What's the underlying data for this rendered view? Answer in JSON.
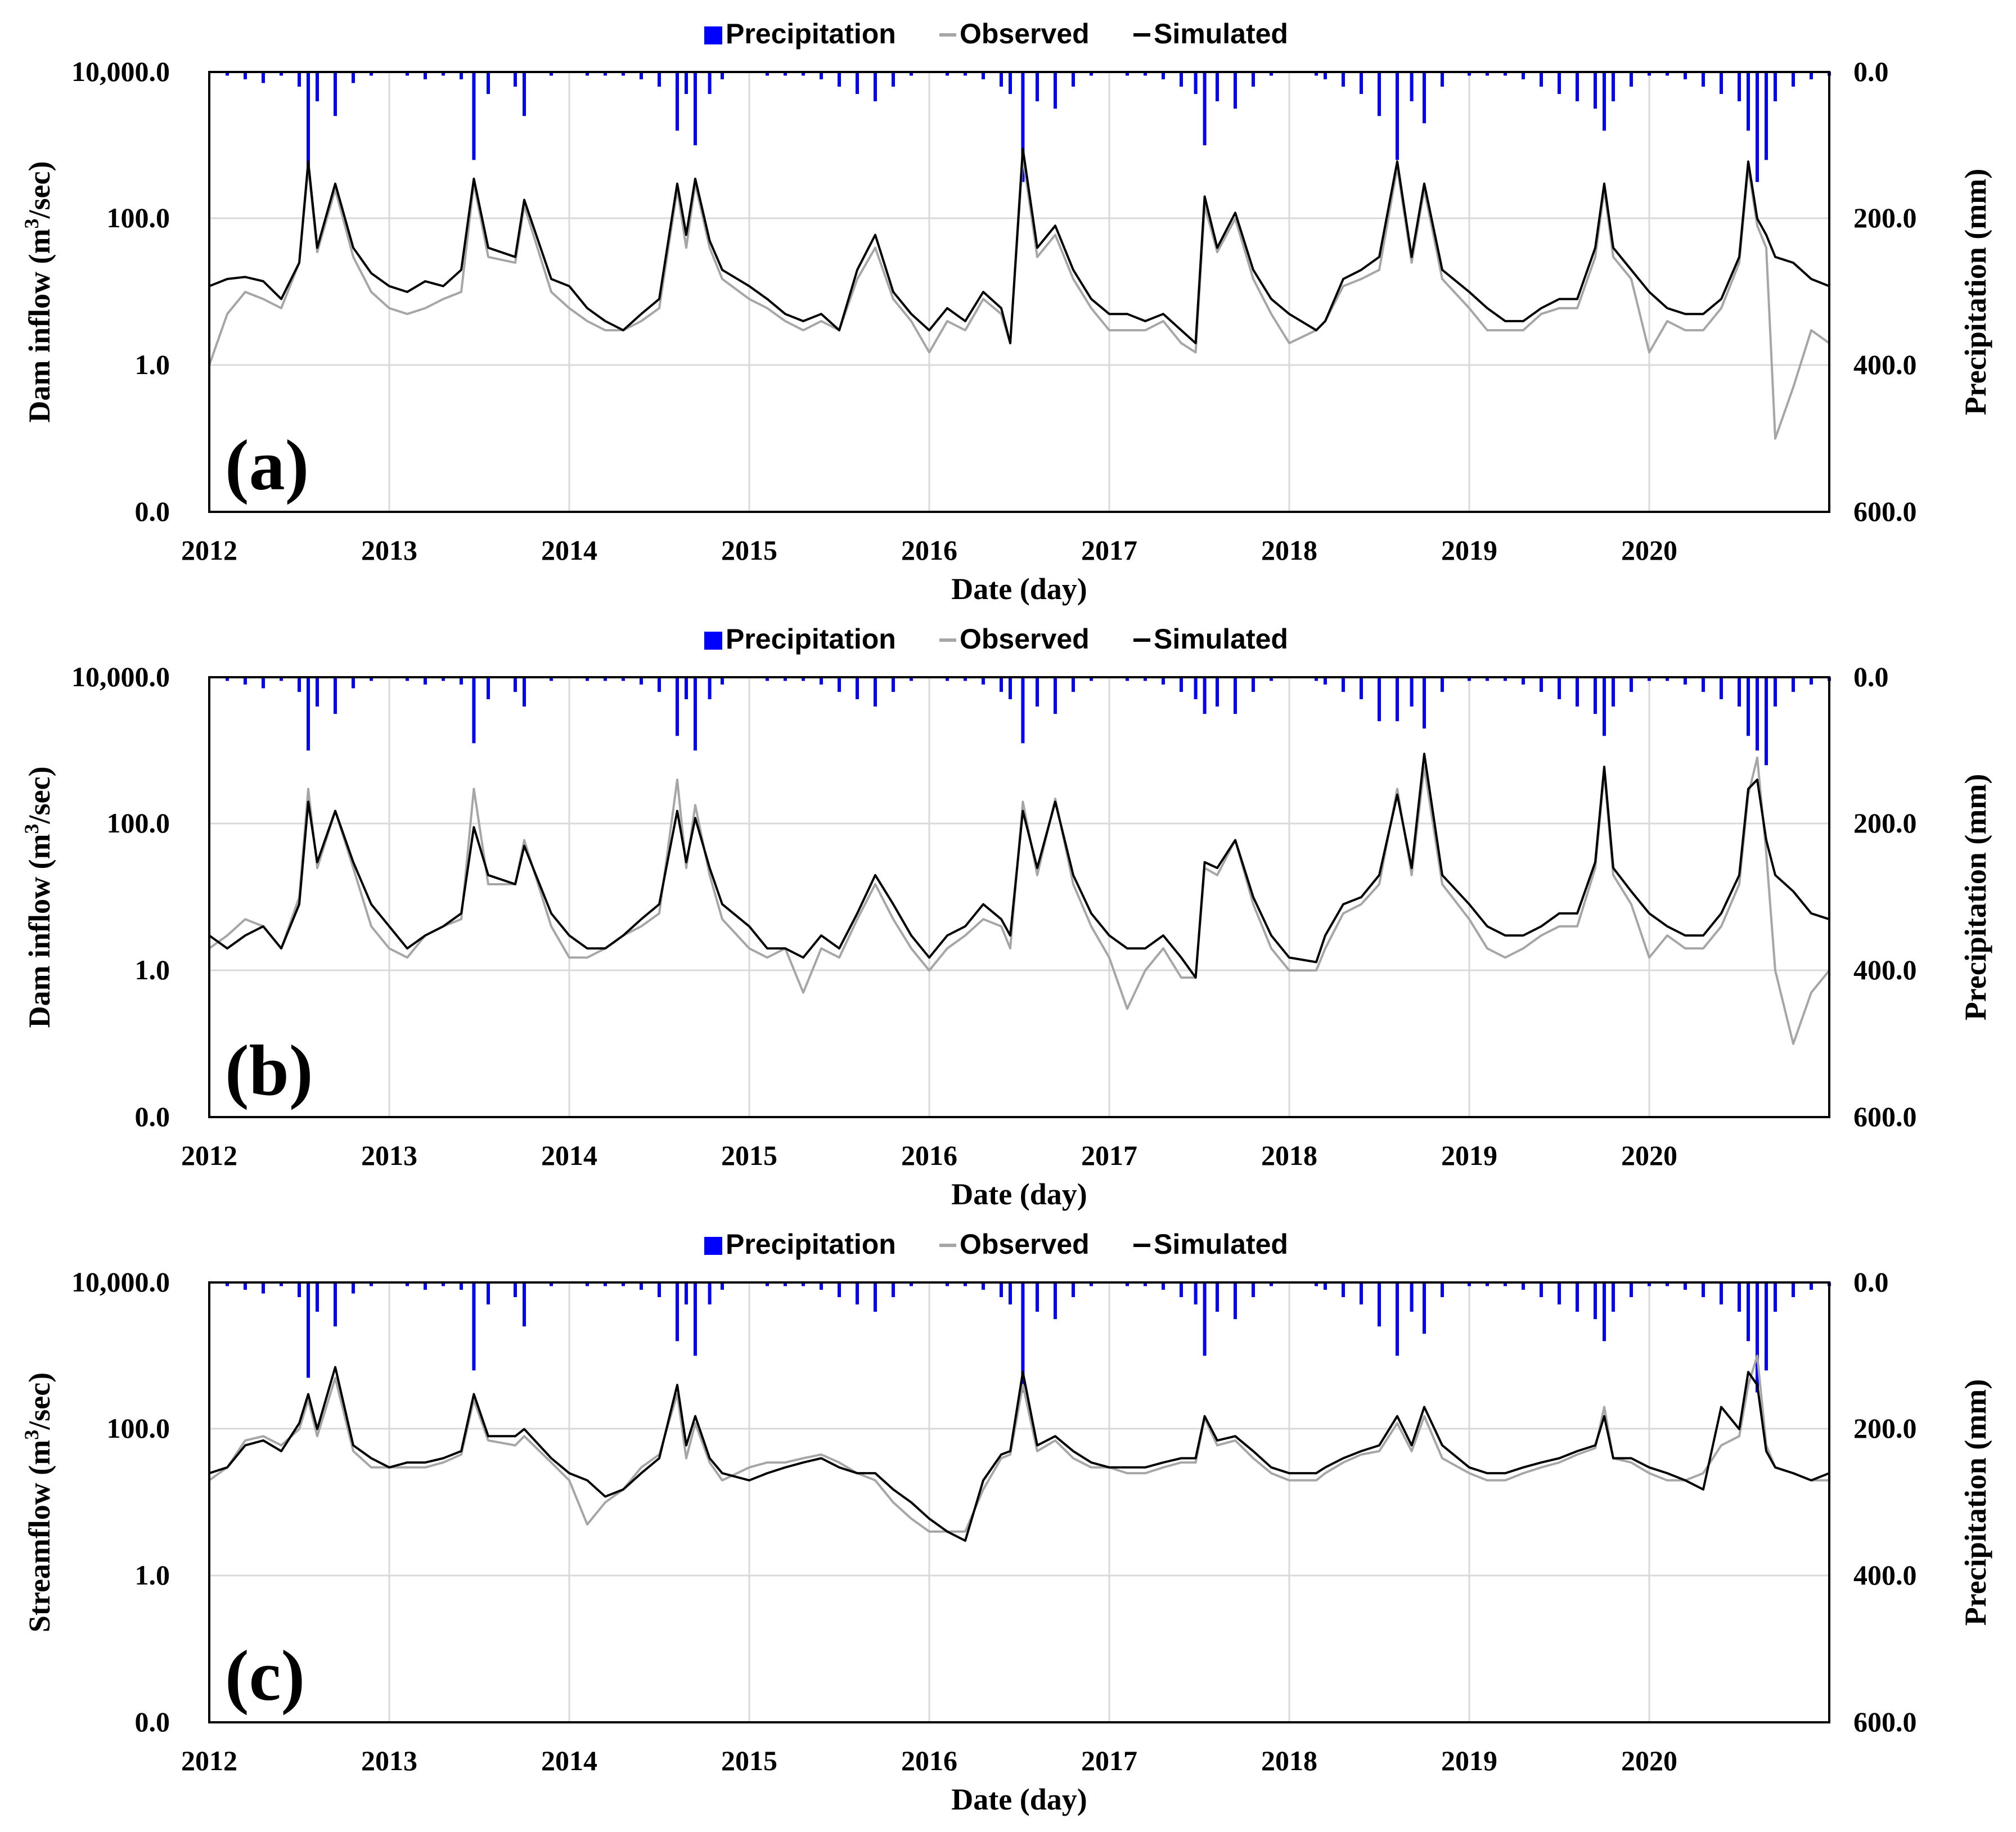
{
  "figure": {
    "legend": {
      "precipitation": "Precipitation",
      "observed": "Observed",
      "simulated": "Simulated"
    },
    "colors": {
      "precipitation": "#0000ff",
      "observed": "#a6a6a6",
      "simulated": "#000000",
      "grid": "#d9d9d9"
    },
    "x_axis_title": "Date (day)",
    "x_tick_labels": [
      "2012",
      "2013",
      "2014",
      "2015",
      "2016",
      "2017",
      "2018",
      "2019",
      "2020"
    ],
    "y_right_title": "Precipitation (mm)",
    "y_right_tick_labels": [
      "0.0",
      "200.0",
      "400.0",
      "600.0"
    ]
  },
  "chart_data": [
    {
      "type": "line",
      "panel_label": "(a)",
      "ylabel_prefix": "Dam inflow (m",
      "ylabel_sup": "3",
      "ylabel_suffix": "/sec)",
      "y_tick_labels": [
        "0.0",
        "1.0",
        "100.0",
        "10,000.0"
      ],
      "xlim": [
        2012.0,
        2021.0
      ],
      "ylim_log": [
        0.01,
        10000
      ],
      "y2lim": [
        0,
        600
      ],
      "x": [
        2012.0,
        2012.1,
        2012.2,
        2012.3,
        2012.4,
        2012.5,
        2012.55,
        2012.6,
        2012.7,
        2012.8,
        2012.9,
        2013.0,
        2013.1,
        2013.2,
        2013.3,
        2013.4,
        2013.47,
        2013.55,
        2013.7,
        2013.75,
        2013.9,
        2014.0,
        2014.1,
        2014.2,
        2014.3,
        2014.4,
        2014.5,
        2014.6,
        2014.65,
        2014.7,
        2014.78,
        2014.85,
        2015.0,
        2015.1,
        2015.2,
        2015.3,
        2015.4,
        2015.5,
        2015.6,
        2015.7,
        2015.8,
        2015.9,
        2016.0,
        2016.1,
        2016.2,
        2016.3,
        2016.4,
        2016.45,
        2016.52,
        2016.6,
        2016.7,
        2016.8,
        2016.9,
        2017.0,
        2017.1,
        2017.2,
        2017.3,
        2017.4,
        2017.48,
        2017.53,
        2017.6,
        2017.7,
        2017.8,
        2017.9,
        2018.0,
        2018.15,
        2018.2,
        2018.3,
        2018.4,
        2018.5,
        2018.6,
        2018.68,
        2018.75,
        2018.85,
        2019.0,
        2019.1,
        2019.2,
        2019.3,
        2019.4,
        2019.5,
        2019.6,
        2019.7,
        2019.75,
        2019.8,
        2019.9,
        2020.0,
        2020.1,
        2020.2,
        2020.3,
        2020.4,
        2020.5,
        2020.55,
        2020.6,
        2020.65,
        2020.7,
        2020.8,
        2020.9,
        2021.0
      ],
      "simulated": [
        12,
        15,
        16,
        14,
        8,
        25,
        600,
        40,
        300,
        40,
        18,
        12,
        10,
        14,
        12,
        20,
        350,
        40,
        30,
        180,
        15,
        12,
        6,
        4,
        3,
        5,
        8,
        300,
        60,
        350,
        50,
        20,
        12,
        8,
        5,
        4,
        5,
        3,
        20,
        60,
        10,
        5,
        3,
        6,
        4,
        10,
        6,
        2,
        900,
        40,
        80,
        20,
        8,
        5,
        5,
        4,
        5,
        3,
        2,
        200,
        40,
        120,
        20,
        8,
        5,
        3,
        4,
        15,
        20,
        30,
        600,
        30,
        300,
        20,
        10,
        6,
        4,
        4,
        6,
        8,
        8,
        40,
        300,
        40,
        20,
        10,
        6,
        5,
        5,
        8,
        30,
        600,
        100,
        60,
        30,
        25,
        15,
        12
      ],
      "observed": [
        1,
        5,
        10,
        8,
        6,
        25,
        500,
        35,
        250,
        30,
        10,
        6,
        5,
        6,
        8,
        10,
        300,
        30,
        25,
        150,
        10,
        6,
        4,
        3,
        3,
        4,
        6,
        250,
        40,
        300,
        40,
        15,
        8,
        6,
        4,
        3,
        4,
        3,
        15,
        40,
        8,
        4,
        1.5,
        4,
        3,
        8,
        5,
        2,
        700,
        30,
        60,
        15,
        6,
        3,
        3,
        3,
        4,
        2,
        1.5,
        150,
        35,
        100,
        15,
        5,
        2,
        3,
        4,
        12,
        15,
        20,
        500,
        25,
        250,
        15,
        6,
        3,
        3,
        3,
        5,
        6,
        6,
        30,
        250,
        30,
        15,
        1.5,
        4,
        3,
        3,
        6,
        25,
        500,
        80,
        40,
        0.1,
        0.5,
        3,
        2
      ],
      "precipitation": [
        0,
        5,
        10,
        15,
        5,
        20,
        130,
        40,
        60,
        15,
        5,
        0,
        5,
        10,
        5,
        10,
        120,
        30,
        20,
        60,
        5,
        0,
        5,
        5,
        5,
        10,
        20,
        80,
        30,
        100,
        30,
        10,
        0,
        5,
        5,
        5,
        10,
        20,
        30,
        40,
        20,
        5,
        0,
        5,
        5,
        10,
        20,
        30,
        150,
        40,
        50,
        20,
        5,
        0,
        5,
        5,
        10,
        20,
        30,
        100,
        40,
        50,
        20,
        5,
        0,
        5,
        10,
        20,
        30,
        60,
        120,
        40,
        70,
        20,
        5,
        5,
        5,
        10,
        20,
        30,
        40,
        50,
        80,
        40,
        20,
        5,
        5,
        10,
        20,
        30,
        40,
        80,
        150,
        120,
        40,
        20,
        10,
        5
      ]
    },
    {
      "type": "line",
      "panel_label": "(b)",
      "ylabel_prefix": "Dam inflow (m",
      "ylabel_sup": "3",
      "ylabel_suffix": "/sec)",
      "y_tick_labels": [
        "0.0",
        "1.0",
        "100.0",
        "10,000.0"
      ],
      "xlim": [
        2012.0,
        2021.0
      ],
      "ylim_log": [
        0.01,
        10000
      ],
      "y2lim": [
        0,
        600
      ],
      "x": [
        2012.0,
        2012.1,
        2012.2,
        2012.3,
        2012.4,
        2012.5,
        2012.55,
        2012.6,
        2012.7,
        2012.8,
        2012.9,
        2013.0,
        2013.1,
        2013.2,
        2013.3,
        2013.4,
        2013.47,
        2013.55,
        2013.7,
        2013.75,
        2013.9,
        2014.0,
        2014.1,
        2014.2,
        2014.3,
        2014.4,
        2014.5,
        2014.6,
        2014.65,
        2014.7,
        2014.78,
        2014.85,
        2015.0,
        2015.1,
        2015.2,
        2015.3,
        2015.4,
        2015.5,
        2015.6,
        2015.7,
        2015.8,
        2015.9,
        2016.0,
        2016.1,
        2016.2,
        2016.3,
        2016.4,
        2016.45,
        2016.52,
        2016.6,
        2016.7,
        2016.8,
        2016.9,
        2017.0,
        2017.1,
        2017.2,
        2017.3,
        2017.4,
        2017.48,
        2017.53,
        2017.6,
        2017.7,
        2017.8,
        2017.9,
        2018.0,
        2018.15,
        2018.2,
        2018.3,
        2018.4,
        2018.5,
        2018.6,
        2018.68,
        2018.75,
        2018.85,
        2019.0,
        2019.1,
        2019.2,
        2019.3,
        2019.4,
        2019.5,
        2019.6,
        2019.7,
        2019.75,
        2019.8,
        2019.9,
        2020.0,
        2020.1,
        2020.2,
        2020.3,
        2020.4,
        2020.5,
        2020.55,
        2020.6,
        2020.65,
        2020.7,
        2020.8,
        2020.9,
        2021.0
      ],
      "simulated": [
        3,
        2,
        3,
        4,
        2,
        8,
        200,
        30,
        150,
        30,
        8,
        4,
        2,
        3,
        4,
        6,
        90,
        20,
        15,
        50,
        6,
        3,
        2,
        2,
        3,
        5,
        8,
        150,
        30,
        120,
        25,
        8,
        4,
        2,
        2,
        1.5,
        3,
        2,
        6,
        20,
        8,
        3,
        1.5,
        3,
        4,
        8,
        5,
        3,
        150,
        25,
        200,
        20,
        6,
        3,
        2,
        2,
        3,
        1.5,
        0.8,
        30,
        25,
        60,
        10,
        3,
        1.5,
        1.3,
        3,
        8,
        10,
        20,
        250,
        25,
        900,
        20,
        8,
        4,
        3,
        3,
        4,
        6,
        6,
        30,
        600,
        25,
        12,
        6,
        4,
        3,
        3,
        6,
        20,
        300,
        400,
        60,
        20,
        12,
        6,
        5
      ],
      "observed": [
        2,
        3,
        5,
        4,
        2,
        10,
        300,
        25,
        150,
        25,
        4,
        2,
        1.5,
        3,
        4,
        5,
        300,
        15,
        15,
        60,
        4,
        1.5,
        1.5,
        2,
        3,
        4,
        6,
        400,
        25,
        180,
        20,
        5,
        2,
        1.5,
        2,
        0.5,
        2,
        1.5,
        5,
        15,
        5,
        2,
        1,
        2,
        3,
        5,
        4,
        2,
        200,
        20,
        220,
        15,
        4,
        1.5,
        0.3,
        1,
        2,
        0.8,
        0.8,
        25,
        20,
        60,
        8,
        2,
        1,
        1,
        2,
        6,
        8,
        15,
        300,
        20,
        600,
        15,
        5,
        2,
        1.5,
        2,
        3,
        4,
        4,
        25,
        500,
        20,
        8,
        1.5,
        3,
        2,
        2,
        4,
        15,
        250,
        800,
        40,
        1,
        0.1,
        0.5,
        1
      ],
      "precipitation": [
        0,
        5,
        10,
        15,
        5,
        20,
        100,
        40,
        50,
        15,
        5,
        0,
        5,
        10,
        5,
        10,
        90,
        30,
        20,
        40,
        5,
        0,
        5,
        5,
        5,
        10,
        20,
        80,
        30,
        100,
        30,
        10,
        0,
        5,
        5,
        5,
        10,
        20,
        30,
        40,
        20,
        5,
        0,
        5,
        5,
        10,
        20,
        30,
        90,
        40,
        50,
        20,
        5,
        0,
        5,
        5,
        10,
        20,
        30,
        50,
        40,
        50,
        20,
        5,
        0,
        5,
        10,
        20,
        30,
        60,
        60,
        40,
        70,
        20,
        5,
        5,
        5,
        10,
        20,
        30,
        40,
        50,
        80,
        40,
        20,
        5,
        5,
        10,
        20,
        30,
        40,
        80,
        100,
        120,
        40,
        20,
        10,
        5
      ]
    },
    {
      "type": "line",
      "panel_label": "(c)",
      "ylabel_prefix": "Streamflow (m",
      "ylabel_sup": "3",
      "ylabel_suffix": "/sec)",
      "y_tick_labels": [
        "0.0",
        "1.0",
        "100.0",
        "10,000.0"
      ],
      "xlim": [
        2012.0,
        2021.0
      ],
      "ylim_log": [
        0.01,
        10000
      ],
      "y2lim": [
        0,
        600
      ],
      "x": [
        2012.0,
        2012.1,
        2012.2,
        2012.3,
        2012.4,
        2012.5,
        2012.55,
        2012.6,
        2012.7,
        2012.8,
        2012.9,
        2013.0,
        2013.1,
        2013.2,
        2013.3,
        2013.4,
        2013.47,
        2013.55,
        2013.7,
        2013.75,
        2013.9,
        2014.0,
        2014.1,
        2014.2,
        2014.3,
        2014.4,
        2014.5,
        2014.6,
        2014.65,
        2014.7,
        2014.78,
        2014.85,
        2015.0,
        2015.1,
        2015.2,
        2015.3,
        2015.4,
        2015.5,
        2015.6,
        2015.7,
        2015.8,
        2015.9,
        2016.0,
        2016.1,
        2016.2,
        2016.3,
        2016.4,
        2016.45,
        2016.52,
        2016.6,
        2016.7,
        2016.8,
        2016.9,
        2017.0,
        2017.1,
        2017.2,
        2017.3,
        2017.4,
        2017.48,
        2017.53,
        2017.6,
        2017.7,
        2017.8,
        2017.9,
        2018.0,
        2018.15,
        2018.2,
        2018.3,
        2018.4,
        2018.5,
        2018.6,
        2018.68,
        2018.75,
        2018.85,
        2019.0,
        2019.1,
        2019.2,
        2019.3,
        2019.4,
        2019.5,
        2019.6,
        2019.7,
        2019.75,
        2019.8,
        2019.9,
        2020.0,
        2020.1,
        2020.2,
        2020.3,
        2020.4,
        2020.5,
        2020.55,
        2020.6,
        2020.65,
        2020.7,
        2020.8,
        2020.9,
        2021.0
      ],
      "simulated": [
        25,
        30,
        60,
        70,
        50,
        120,
        300,
        100,
        700,
        60,
        40,
        30,
        35,
        35,
        40,
        50,
        300,
        80,
        80,
        100,
        40,
        25,
        20,
        12,
        15,
        25,
        40,
        400,
        60,
        150,
        40,
        25,
        20,
        25,
        30,
        35,
        40,
        30,
        25,
        25,
        15,
        10,
        6,
        4,
        3,
        20,
        45,
        50,
        600,
        60,
        80,
        50,
        35,
        30,
        30,
        30,
        35,
        40,
        40,
        150,
        70,
        80,
        50,
        30,
        25,
        25,
        30,
        40,
        50,
        60,
        150,
        60,
        200,
        60,
        30,
        25,
        25,
        30,
        35,
        40,
        50,
        60,
        150,
        40,
        40,
        30,
        25,
        20,
        15,
        200,
        100,
        600,
        400,
        50,
        30,
        25,
        20,
        25
      ],
      "observed": [
        20,
        30,
        70,
        80,
        60,
        100,
        250,
        80,
        500,
        50,
        30,
        30,
        30,
        30,
        35,
        45,
        250,
        70,
        60,
        80,
        35,
        20,
        5,
        10,
        15,
        30,
        45,
        300,
        40,
        120,
        35,
        20,
        30,
        35,
        35,
        40,
        45,
        35,
        25,
        20,
        10,
        6,
        4,
        4,
        4,
        15,
        40,
        45,
        400,
        50,
        70,
        40,
        30,
        30,
        25,
        25,
        30,
        35,
        35,
        140,
        60,
        70,
        40,
        25,
        20,
        20,
        25,
        35,
        45,
        50,
        120,
        50,
        150,
        40,
        25,
        20,
        20,
        25,
        30,
        35,
        45,
        55,
        200,
        40,
        35,
        25,
        20,
        20,
        25,
        60,
        80,
        400,
        1000,
        60,
        30,
        25,
        20,
        20
      ],
      "precipitation": [
        0,
        5,
        10,
        15,
        5,
        20,
        130,
        40,
        60,
        15,
        5,
        0,
        5,
        10,
        5,
        10,
        120,
        30,
        20,
        60,
        5,
        0,
        5,
        5,
        5,
        10,
        20,
        80,
        30,
        100,
        30,
        10,
        0,
        5,
        5,
        5,
        10,
        20,
        30,
        40,
        20,
        5,
        0,
        5,
        5,
        10,
        20,
        30,
        150,
        40,
        50,
        20,
        5,
        0,
        5,
        5,
        10,
        20,
        30,
        100,
        40,
        50,
        20,
        5,
        0,
        5,
        10,
        20,
        30,
        60,
        100,
        40,
        70,
        20,
        5,
        5,
        5,
        10,
        20,
        30,
        40,
        50,
        80,
        40,
        20,
        5,
        5,
        10,
        20,
        30,
        40,
        80,
        150,
        120,
        40,
        20,
        10,
        5
      ]
    }
  ]
}
